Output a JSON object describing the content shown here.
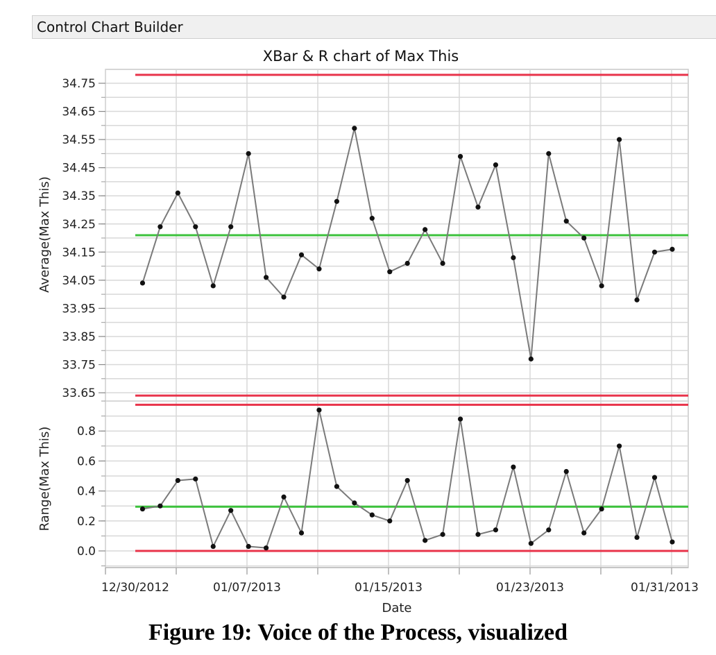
{
  "header": {
    "title": "Control Chart Builder"
  },
  "caption": "Figure 19: Voice of the Process, visualized",
  "colors": {
    "limit": "#e8334a",
    "center": "#3cc23c",
    "series": "#7a7a7a",
    "point": "#111111",
    "grid": "#d8d8d8"
  },
  "chart_data": [
    {
      "type": "line",
      "title": "XBar & R chart of Max This",
      "xlabel": "Date",
      "ylabel": "Average(Max This)",
      "ylim": [
        33.62,
        34.8
      ],
      "yticks": [
        "34.75",
        "34.65",
        "34.55",
        "34.45",
        "34.35",
        "34.25",
        "34.15",
        "34.05",
        "33.95",
        "33.85",
        "33.75",
        "33.65"
      ],
      "xticks": [
        "12/30/2012",
        "01/07/2013",
        "01/15/2013",
        "01/23/2013",
        "01/31/2013"
      ],
      "limits": {
        "UCL": 34.78,
        "center": 34.21,
        "LCL": 33.64
      },
      "x": [
        "01/01/2013",
        "01/02/2013",
        "01/03/2013",
        "01/04/2013",
        "01/05/2013",
        "01/06/2013",
        "01/07/2013",
        "01/08/2013",
        "01/09/2013",
        "01/10/2013",
        "01/11/2013",
        "01/12/2013",
        "01/13/2013",
        "01/14/2013",
        "01/15/2013",
        "01/16/2013",
        "01/17/2013",
        "01/18/2013",
        "01/19/2013",
        "01/20/2013",
        "01/21/2013",
        "01/22/2013",
        "01/23/2013",
        "01/24/2013",
        "01/25/2013",
        "01/26/2013",
        "01/27/2013",
        "01/28/2013",
        "01/29/2013",
        "01/30/2013",
        "01/31/2013"
      ],
      "values": [
        34.04,
        34.24,
        34.36,
        34.24,
        34.03,
        34.24,
        34.5,
        34.06,
        33.99,
        34.14,
        34.09,
        34.33,
        34.59,
        34.27,
        34.08,
        34.11,
        34.23,
        34.11,
        34.49,
        34.31,
        34.46,
        34.13,
        33.77,
        34.5,
        34.26,
        34.2,
        34.03,
        34.55,
        33.98,
        34.15,
        34.16
      ],
      "grid": true
    },
    {
      "type": "line",
      "title": "",
      "xlabel": "Date",
      "ylabel": "Range(Max This)",
      "ylim": [
        -0.1,
        1.0
      ],
      "yticks": [
        "0.8",
        "0.6",
        "0.4",
        "0.2",
        "0.0"
      ],
      "xticks": [
        "12/30/2012",
        "01/07/2013",
        "01/15/2013",
        "01/23/2013",
        "01/31/2013"
      ],
      "limits": {
        "UCL": 0.975,
        "center": 0.295,
        "LCL": 0.0
      },
      "values": [
        0.28,
        0.3,
        0.47,
        0.48,
        0.03,
        0.27,
        0.03,
        0.02,
        0.36,
        0.12,
        0.94,
        0.43,
        0.32,
        0.24,
        0.2,
        0.47,
        0.07,
        0.11,
        0.88,
        0.11,
        0.14,
        0.56,
        0.05,
        0.14,
        0.53,
        0.12,
        0.28,
        0.7,
        0.09,
        0.49,
        0.06
      ],
      "grid": true
    }
  ]
}
